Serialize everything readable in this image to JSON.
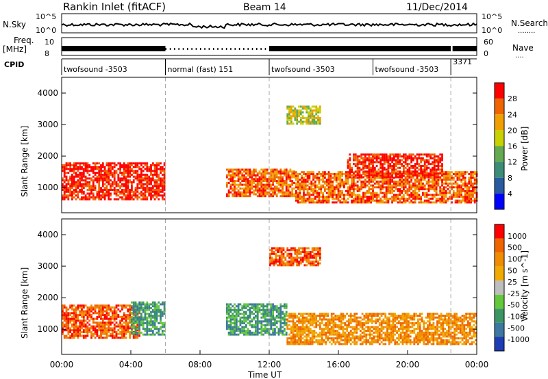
{
  "header": {
    "station": "Rankin Inlet (fitACF)",
    "beam": "Beam 14",
    "date": "11/Dec/2014"
  },
  "aux_labels": {
    "nsky": "N.Sky",
    "nsearch": "N.Search",
    "nsearch_dots": "........",
    "freq": "Freq.",
    "freq_unit": "[MHz]",
    "nave": "Nave",
    "nave_dots": "....",
    "cpid": "CPID"
  },
  "aux_ticks": {
    "noise_top": "10^5",
    "noise_bottom": "10^0",
    "freq_top": "10",
    "freq_bottom": "8",
    "nave_top": "60",
    "nave_bottom": "0"
  },
  "cpid_segments": [
    {
      "label": "twofsound -3503",
      "start_h": 0,
      "end_h": 6
    },
    {
      "label": "normal (fast) 151",
      "start_h": 6,
      "end_h": 12
    },
    {
      "label": "twofsound -3503",
      "start_h": 12,
      "end_h": 18.0
    },
    {
      "label": "twofsound -3503",
      "start_h": 18.0,
      "end_h": 22.5
    },
    {
      "label": "3371",
      "start_h": 22.5,
      "end_h": 24
    }
  ],
  "colors": {
    "power": [
      "#0000ff",
      "#285aa0",
      "#3c8c78",
      "#64aa50",
      "#c8d200",
      "#f0a000",
      "#f06400",
      "#ff0000"
    ],
    "velocity": [
      "#1e3cb4",
      "#3c78a0",
      "#3c9664",
      "#64c83c",
      "#bebebe",
      "#f0aa00",
      "#f08c00",
      "#f06400",
      "#ff0000"
    ]
  },
  "chart_data": [
    {
      "type": "heatmap",
      "name": "Power",
      "ylabel": "Slant Range [km]",
      "xlabel": "",
      "yticks": [
        "1000",
        "2000",
        "3000",
        "4000"
      ],
      "ylim": [
        200,
        4500
      ],
      "xlim_hours": [
        0,
        24
      ],
      "colorbar_label": "Power [dB]",
      "colorbar_ticks": [
        "4",
        "8",
        "12",
        "16",
        "20",
        "24",
        "28"
      ],
      "regions": [
        {
          "t0": 0.0,
          "t1": 6.0,
          "r0": 600,
          "r1": 1800,
          "level": 7
        },
        {
          "t0": 9.5,
          "t1": 13.5,
          "r0": 700,
          "r1": 1600,
          "level": 6
        },
        {
          "t0": 13.5,
          "t1": 24.0,
          "r0": 500,
          "r1": 1500,
          "level": 6
        },
        {
          "t0": 16.5,
          "t1": 22.0,
          "r0": 1300,
          "r1": 2100,
          "level": 7
        },
        {
          "t0": 13.0,
          "t1": 15.0,
          "r0": 3000,
          "r1": 3600,
          "level": 4
        }
      ]
    },
    {
      "type": "heatmap",
      "name": "Velocity",
      "ylabel": "Slant Range [km]",
      "xlabel": "Time UT",
      "yticks": [
        "1000",
        "2000",
        "3000",
        "4000"
      ],
      "ylim": [
        200,
        4500
      ],
      "xticks": [
        "00:00",
        "04:00",
        "08:00",
        "12:00",
        "16:00",
        "20:00",
        "00:00"
      ],
      "xlim_hours": [
        0,
        24
      ],
      "colorbar_label": "Velocity [m s^-1]",
      "colorbar_ticks": [
        "1000",
        "500",
        "100",
        "50",
        "25",
        "-25",
        "-50",
        "-100",
        "-500",
        "-1000"
      ],
      "regions": [
        {
          "t0": 0.0,
          "t1": 4.5,
          "r0": 700,
          "r1": 1800,
          "level": 7
        },
        {
          "t0": 4.0,
          "t1": 6.0,
          "r0": 800,
          "r1": 1900,
          "level": 2
        },
        {
          "t0": 9.5,
          "t1": 13.0,
          "r0": 800,
          "r1": 1800,
          "level": 2
        },
        {
          "t0": 13.0,
          "t1": 24.0,
          "r0": 500,
          "r1": 1500,
          "level": 6
        },
        {
          "t0": 12.0,
          "t1": 15.0,
          "r0": 3000,
          "r1": 3600,
          "level": 7
        }
      ]
    }
  ]
}
